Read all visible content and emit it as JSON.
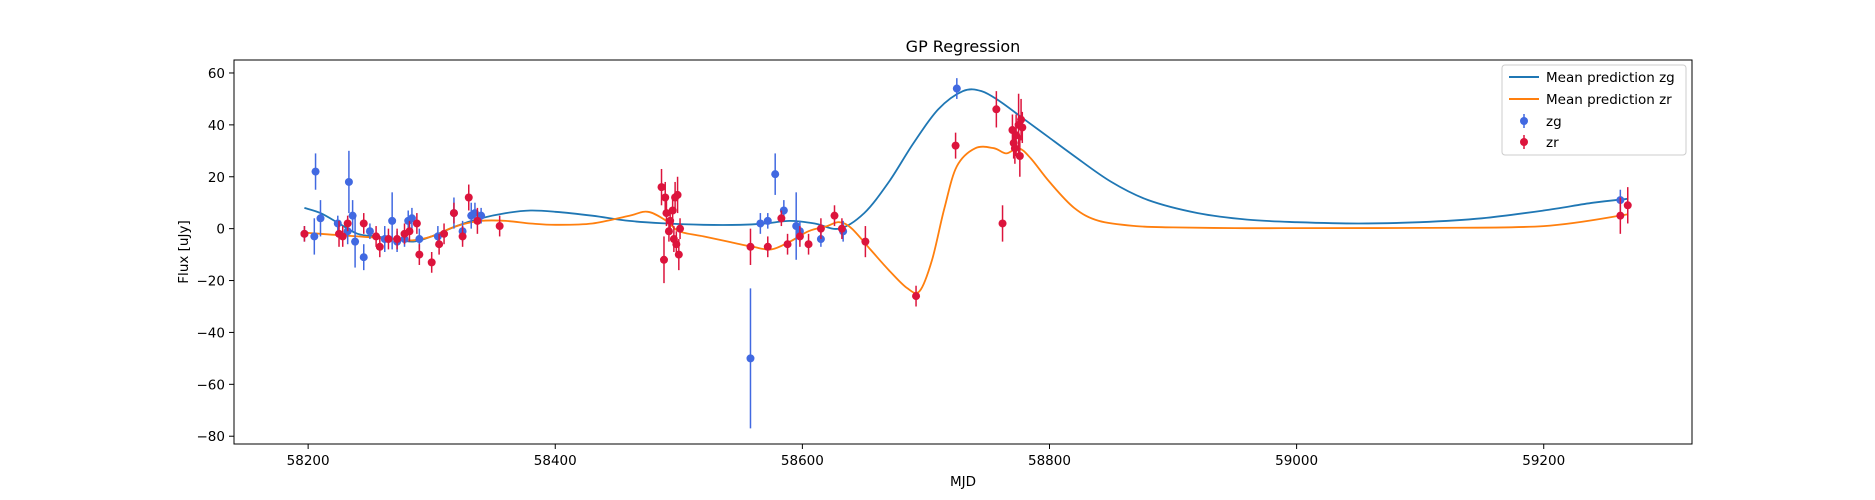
{
  "chart_data": {
    "type": "scatter",
    "title": "GP Regression",
    "xlabel": "MJD",
    "ylabel": "Flux [uJy]",
    "xlim": [
      58140,
      59320
    ],
    "ylim": [
      -83,
      65
    ],
    "xticks": [
      58200,
      58400,
      58600,
      58800,
      59000,
      59200
    ],
    "yticks": [
      -80,
      -60,
      -40,
      -20,
      0,
      20,
      40,
      60
    ],
    "xtick_labels": [
      "58200",
      "58400",
      "58600",
      "58800",
      "59000",
      "59200"
    ],
    "ytick_labels": [
      "−80",
      "−60",
      "−40",
      "−20",
      "0",
      "20",
      "40",
      "60"
    ],
    "grid": false,
    "legend_position": "top-right",
    "lines": [
      {
        "name": "Mean prediction zg",
        "color": "#1f77b4",
        "x": [
          58197,
          58210,
          58225,
          58240,
          58255,
          58270,
          58285,
          58300,
          58320,
          58340,
          58360,
          58380,
          58400,
          58430,
          58460,
          58490,
          58520,
          58550,
          58570,
          58590,
          58610,
          58630,
          58650,
          58670,
          58690,
          58710,
          58730,
          58745,
          58760,
          58780,
          58800,
          58820,
          58850,
          58880,
          58920,
          58960,
          59000,
          59050,
          59100,
          59150,
          59200,
          59240,
          59268
        ],
        "y": [
          8,
          6,
          2,
          -2,
          -3,
          -4,
          -5,
          -3,
          1,
          4,
          6,
          7,
          6.5,
          5,
          3,
          2,
          1.5,
          1.5,
          2,
          3,
          2,
          0,
          6,
          18,
          33,
          46,
          53,
          53,
          49,
          42,
          35,
          28,
          18,
          11,
          6,
          3.5,
          2.5,
          2,
          2.5,
          4,
          7,
          10,
          11.5
        ]
      },
      {
        "name": "Mean prediction zr",
        "color": "#ff7f0e",
        "x": [
          58197,
          58210,
          58225,
          58240,
          58255,
          58270,
          58285,
          58300,
          58320,
          58340,
          58360,
          58380,
          58400,
          58430,
          58460,
          58475,
          58490,
          58500,
          58520,
          58540,
          58560,
          58575,
          58590,
          58605,
          58620,
          58630,
          58640,
          58655,
          58670,
          58685,
          58695,
          58705,
          58715,
          58725,
          58740,
          58755,
          58765,
          58775,
          58785,
          58800,
          58820,
          58840,
          58870,
          58900,
          58950,
          59000,
          59100,
          59200,
          59268
        ],
        "y": [
          -1.5,
          -2,
          -2.5,
          -3,
          -3.5,
          -4,
          -4.5,
          -3,
          1,
          3,
          3,
          2,
          1.5,
          2,
          5,
          6.5,
          3,
          -1,
          -3,
          -5,
          -7,
          -8,
          -5,
          -1,
          1,
          2.5,
          0,
          -8,
          -16,
          -23,
          -24,
          -12,
          8,
          24,
          31,
          31,
          29,
          31,
          27,
          18,
          8,
          3,
          1,
          0.5,
          0.2,
          0.2,
          0.3,
          1,
          5.5
        ]
      }
    ],
    "series": [
      {
        "name": "zg",
        "color": "#4169e1",
        "points": [
          [
            58197,
            -2,
            3
          ],
          [
            58205,
            -3,
            7
          ],
          [
            58206,
            22,
            7
          ],
          [
            58210,
            4,
            7
          ],
          [
            58224,
            2,
            3
          ],
          [
            58232,
            -1,
            5
          ],
          [
            58233,
            18,
            12
          ],
          [
            58236,
            5,
            6
          ],
          [
            58238,
            -5,
            10
          ],
          [
            58245,
            -11,
            5
          ],
          [
            58250,
            -1,
            3
          ],
          [
            58262,
            -4,
            5
          ],
          [
            58268,
            3,
            11
          ],
          [
            58272,
            -5,
            4
          ],
          [
            58278,
            -4,
            3
          ],
          [
            58281,
            3,
            4
          ],
          [
            58284,
            4,
            4
          ],
          [
            58290,
            -4,
            4
          ],
          [
            58305,
            -3,
            4
          ],
          [
            58318,
            6,
            6
          ],
          [
            58325,
            -1,
            4
          ],
          [
            58332,
            5,
            5
          ],
          [
            58335,
            6,
            4
          ],
          [
            58340,
            5,
            3
          ],
          [
            58558,
            -50,
            27
          ],
          [
            58566,
            2,
            4
          ],
          [
            58572,
            3,
            3
          ],
          [
            58578,
            21,
            8
          ],
          [
            58585,
            7,
            4
          ],
          [
            58595,
            1,
            13
          ],
          [
            58598,
            -1,
            4
          ],
          [
            58615,
            -4,
            3
          ],
          [
            58633,
            -1,
            4
          ],
          [
            58725,
            54,
            4
          ],
          [
            59262,
            11,
            4
          ]
        ]
      },
      {
        "name": "zr",
        "color": "#dc143c",
        "points": [
          [
            58197,
            -2,
            3
          ],
          [
            58225,
            -2,
            5
          ],
          [
            58228,
            -3,
            4
          ],
          [
            58232,
            2,
            3
          ],
          [
            58245,
            2,
            4
          ],
          [
            58255,
            -3,
            4
          ],
          [
            58258,
            -7,
            4
          ],
          [
            58265,
            -4,
            4
          ],
          [
            58272,
            -4,
            4
          ],
          [
            58278,
            -2,
            4
          ],
          [
            58282,
            -1,
            4
          ],
          [
            58288,
            2,
            4
          ],
          [
            58290,
            -10,
            4
          ],
          [
            58300,
            -13,
            4
          ],
          [
            58306,
            -6,
            4
          ],
          [
            58310,
            -2,
            4
          ],
          [
            58318,
            6,
            4
          ],
          [
            58325,
            -3,
            4
          ],
          [
            58330,
            12,
            5
          ],
          [
            58337,
            3,
            5
          ],
          [
            58355,
            1,
            4
          ],
          [
            58486,
            16,
            7
          ],
          [
            58488,
            -12,
            9
          ],
          [
            58489,
            12,
            6
          ],
          [
            58490,
            6,
            5
          ],
          [
            58492,
            -1,
            4
          ],
          [
            58493,
            3,
            4
          ],
          [
            58495,
            7,
            6
          ],
          [
            58496,
            -4,
            5
          ],
          [
            58497,
            12,
            6
          ],
          [
            58498,
            -6,
            5
          ],
          [
            58499,
            13,
            7
          ],
          [
            58500,
            -10,
            6
          ],
          [
            58501,
            0,
            4
          ],
          [
            58558,
            -7,
            7
          ],
          [
            58572,
            -7,
            4
          ],
          [
            58583,
            4,
            3
          ],
          [
            58588,
            -6,
            4
          ],
          [
            58598,
            -3,
            4
          ],
          [
            58605,
            -6,
            4
          ],
          [
            58615,
            0,
            4
          ],
          [
            58626,
            5,
            4
          ],
          [
            58632,
            0,
            4
          ],
          [
            58651,
            -5,
            6
          ],
          [
            58692,
            -26,
            4
          ],
          [
            58724,
            32,
            5
          ],
          [
            58757,
            46,
            7
          ],
          [
            58762,
            2,
            7
          ],
          [
            58770,
            38,
            6
          ],
          [
            58771,
            33,
            6
          ],
          [
            58772,
            31,
            6
          ],
          [
            58773,
            36,
            8
          ],
          [
            58775,
            40,
            12
          ],
          [
            58776,
            28,
            8
          ],
          [
            58777,
            42,
            8
          ],
          [
            58778,
            39,
            6
          ],
          [
            59262,
            5,
            7
          ],
          [
            59268,
            9,
            7
          ]
        ]
      }
    ]
  }
}
